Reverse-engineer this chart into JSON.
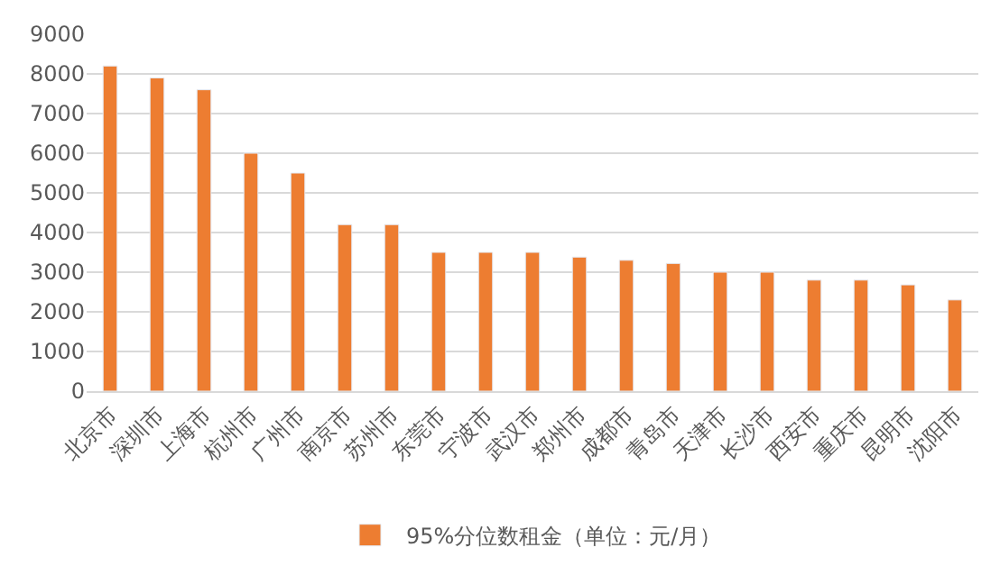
{
  "chart_data": {
    "type": "bar",
    "categories": [
      "北京市",
      "深圳市",
      "上海市",
      "杭州市",
      "广州市",
      "南京市",
      "苏州市",
      "东莞市",
      "宁波市",
      "武汉市",
      "郑州市",
      "成都市",
      "青岛市",
      "天津市",
      "长沙市",
      "西安市",
      "重庆市",
      "昆明市",
      "沈阳市"
    ],
    "series": [
      {
        "name": "95%分位数租金（单位：元/月）",
        "color": "#ed7d31",
        "values": [
          8200,
          7900,
          7600,
          6000,
          5500,
          4200,
          4200,
          3500,
          3500,
          3500,
          3380,
          3300,
          3220,
          3000,
          3000,
          2800,
          2800,
          2680,
          2300
        ]
      }
    ],
    "ylim": [
      0,
      9000
    ],
    "yticks": [
      0,
      1000,
      2000,
      3000,
      4000,
      5000,
      6000,
      7000,
      8000,
      9000
    ],
    "grid": "y",
    "legend": "bottom"
  }
}
